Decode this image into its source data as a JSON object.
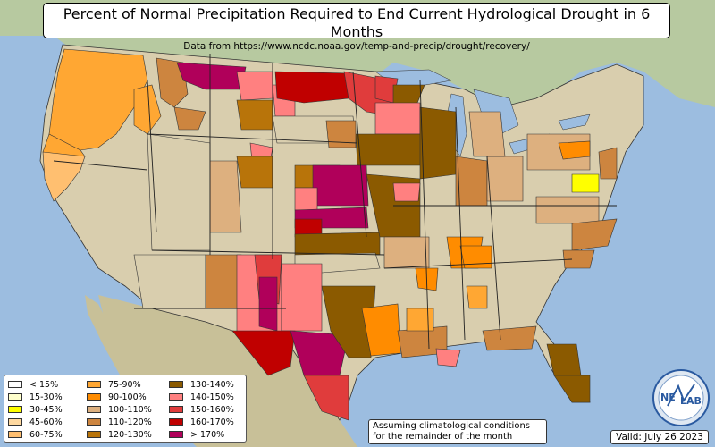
{
  "title": "Percent of Normal Precipitation Required to End Current Hydrological Drought in 6 Months",
  "subtitle": "Data from https://www.ncdc.noaa.gov/temp-and-precip/drought/recovery/",
  "note_line1": "Assuming climatological conditions",
  "note_line2": "for the remainder of the month",
  "valid": "Valid: July 26 2023",
  "logo_text_1": "NE",
  "logo_text_2": "LAB",
  "legend": [
    {
      "label": "< 15%",
      "color": "#ffffff"
    },
    {
      "label": "15-30%",
      "color": "#ffffcc"
    },
    {
      "label": "30-45%",
      "color": "#ffff00"
    },
    {
      "label": "45-60%",
      "color": "#ffd9a0"
    },
    {
      "label": "60-75%",
      "color": "#ffbf70"
    },
    {
      "label": "75-90%",
      "color": "#ffa733"
    },
    {
      "label": "90-100%",
      "color": "#ff8c00"
    },
    {
      "label": "100-110%",
      "color": "#ddb07f"
    },
    {
      "label": "110-120%",
      "color": "#cd853f"
    },
    {
      "label": "120-130%",
      "color": "#b8740a"
    },
    {
      "label": "130-140%",
      "color": "#8b5a00"
    },
    {
      "label": "140-150%",
      "color": "#ff8080"
    },
    {
      "label": "150-160%",
      "color": "#e03c3c"
    },
    {
      "label": "160-170%",
      "color": "#c00000"
    },
    {
      "label": "> 170%",
      "color": "#b0005a"
    }
  ]
}
